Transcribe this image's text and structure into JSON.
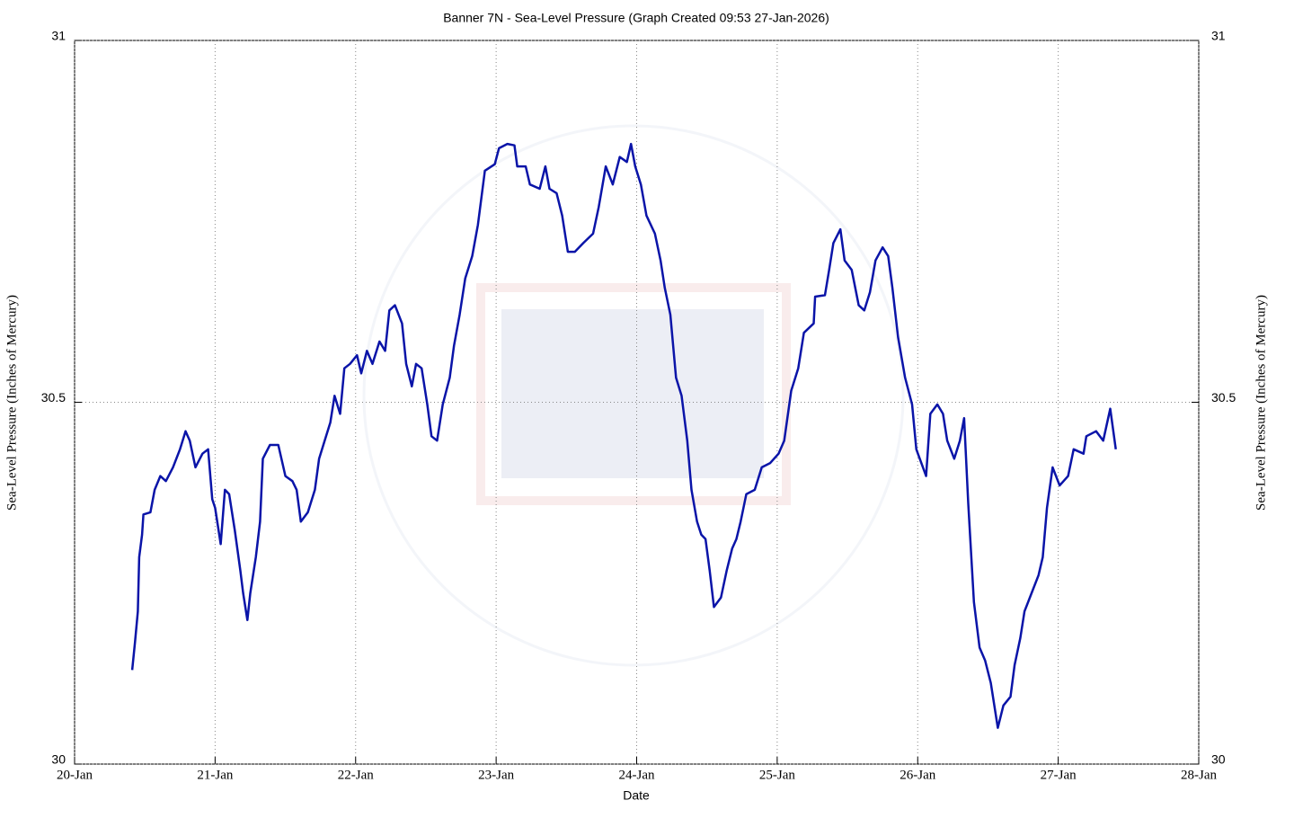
{
  "chart_data": {
    "type": "line",
    "title": "Banner 7N - Sea-Level Pressure (Graph Created 09:53 27-Jan-2026)",
    "xlabel": "Date",
    "ylabel": "Sea-Level Pressure (Inches of Mercury)",
    "y2label": "Sea-Level Pressure (Inches of Mercury)",
    "color": "#0a14a8",
    "grid": true,
    "xlim": [
      0,
      8
    ],
    "xticks": [
      {
        "value": 0,
        "label": "20-Jan"
      },
      {
        "value": 1,
        "label": "21-Jan"
      },
      {
        "value": 2,
        "label": "22-Jan"
      },
      {
        "value": 3,
        "label": "23-Jan"
      },
      {
        "value": 4,
        "label": "24-Jan"
      },
      {
        "value": 5,
        "label": "25-Jan"
      },
      {
        "value": 6,
        "label": "26-Jan"
      },
      {
        "value": 7,
        "label": "27-Jan"
      },
      {
        "value": 8,
        "label": "28-Jan"
      }
    ],
    "ylim": [
      30,
      31
    ],
    "yticks": [
      30,
      30.5,
      31
    ],
    "y2lim": [
      30,
      31
    ],
    "y2ticks": [
      30,
      30.5,
      31
    ],
    "x": [
      0.41,
      0.43,
      0.45,
      0.46,
      0.48,
      0.49,
      0.54,
      0.57,
      0.61,
      0.65,
      0.7,
      0.75,
      0.79,
      0.82,
      0.86,
      0.91,
      0.95,
      0.98,
      1.0,
      1.04,
      1.07,
      1.1,
      1.14,
      1.18,
      1.2,
      1.23,
      1.25,
      1.29,
      1.32,
      1.34,
      1.39,
      1.45,
      1.5,
      1.55,
      1.58,
      1.61,
      1.66,
      1.71,
      1.74,
      1.78,
      1.82,
      1.85,
      1.89,
      1.92,
      1.96,
      2.01,
      2.04,
      2.08,
      2.12,
      2.17,
      2.21,
      2.24,
      2.28,
      2.33,
      2.36,
      2.4,
      2.43,
      2.47,
      2.51,
      2.54,
      2.58,
      2.62,
      2.67,
      2.7,
      2.74,
      2.78,
      2.83,
      2.87,
      2.92,
      2.99,
      3.02,
      3.08,
      3.13,
      3.15,
      3.21,
      3.24,
      3.31,
      3.35,
      3.38,
      3.43,
      3.47,
      3.51,
      3.56,
      3.62,
      3.69,
      3.73,
      3.78,
      3.83,
      3.88,
      3.93,
      3.96,
      3.99,
      4.03,
      4.07,
      4.13,
      4.17,
      4.2,
      4.24,
      4.28,
      4.32,
      4.36,
      4.39,
      4.43,
      4.46,
      4.49,
      4.52,
      4.55,
      4.6,
      4.64,
      4.68,
      4.71,
      4.74,
      4.78,
      4.84,
      4.89,
      4.95,
      5.01,
      5.05,
      5.1,
      5.15,
      5.19,
      5.26,
      5.27,
      5.34,
      5.37,
      5.4,
      5.45,
      5.48,
      5.53,
      5.58,
      5.62,
      5.66,
      5.7,
      5.75,
      5.79,
      5.82,
      5.86,
      5.91,
      5.96,
      5.99,
      6.06,
      6.09,
      6.14,
      6.18,
      6.21,
      6.26,
      6.3,
      6.33,
      6.36,
      6.4,
      6.44,
      6.48,
      6.52,
      6.57,
      6.61,
      6.66,
      6.69,
      6.73,
      6.76,
      6.81,
      6.86,
      6.89,
      6.92,
      6.96,
      7.01,
      7.07,
      7.11,
      7.18,
      7.2,
      7.27,
      7.32,
      7.37,
      7.41
    ],
    "values": [
      30.13,
      30.168,
      30.211,
      30.286,
      30.317,
      30.345,
      30.348,
      30.379,
      30.398,
      30.391,
      30.41,
      30.435,
      30.46,
      30.447,
      30.41,
      30.429,
      30.435,
      30.366,
      30.354,
      30.304,
      30.379,
      30.373,
      30.323,
      30.267,
      30.236,
      30.199,
      30.236,
      30.286,
      30.335,
      30.422,
      30.441,
      30.441,
      30.398,
      30.391,
      30.379,
      30.335,
      30.348,
      30.379,
      30.422,
      30.447,
      30.472,
      30.509,
      30.484,
      30.547,
      30.553,
      30.565,
      30.54,
      30.571,
      30.553,
      30.584,
      30.571,
      30.627,
      30.634,
      30.609,
      30.553,
      30.522,
      30.553,
      30.547,
      30.497,
      30.453,
      30.447,
      30.497,
      30.534,
      30.578,
      30.621,
      30.671,
      30.702,
      30.745,
      30.82,
      30.829,
      30.851,
      30.857,
      30.855,
      30.826,
      30.826,
      30.801,
      30.795,
      30.826,
      30.795,
      30.789,
      30.758,
      30.708,
      30.708,
      30.72,
      30.733,
      30.77,
      30.826,
      30.801,
      30.839,
      30.832,
      30.857,
      30.826,
      30.801,
      30.758,
      30.733,
      30.696,
      30.658,
      30.621,
      30.534,
      30.509,
      30.447,
      30.379,
      30.335,
      30.317,
      30.311,
      30.267,
      30.217,
      30.23,
      30.267,
      30.298,
      30.311,
      30.335,
      30.373,
      30.379,
      30.41,
      30.416,
      30.429,
      30.447,
      30.516,
      30.547,
      30.596,
      30.609,
      30.646,
      30.648,
      30.683,
      30.72,
      30.739,
      30.696,
      30.683,
      30.634,
      30.627,
      30.652,
      30.696,
      30.714,
      30.702,
      30.658,
      30.59,
      30.534,
      30.497,
      30.435,
      30.398,
      30.484,
      30.497,
      30.484,
      30.447,
      30.422,
      30.447,
      30.478,
      30.36,
      30.224,
      30.161,
      30.143,
      30.112,
      30.05,
      30.081,
      30.093,
      30.137,
      30.174,
      30.211,
      30.236,
      30.261,
      30.286,
      30.354,
      30.41,
      30.385,
      30.398,
      30.435,
      30.429,
      30.453,
      30.46,
      30.447,
      30.491,
      30.435
    ]
  }
}
